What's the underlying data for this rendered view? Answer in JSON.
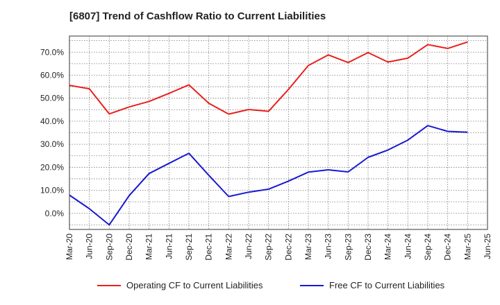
{
  "chart_data": {
    "type": "line",
    "title": "[6807]  Trend of Cashflow Ratio to Current Liabilities",
    "xlabel": "",
    "ylabel": "",
    "x": [
      "Mar-20",
      "Jun-20",
      "Sep-20",
      "Dec-20",
      "Mar-21",
      "Jun-21",
      "Sep-21",
      "Dec-21",
      "Mar-22",
      "Jun-22",
      "Sep-22",
      "Dec-22",
      "Mar-23",
      "Jun-23",
      "Sep-23",
      "Dec-23",
      "Mar-24",
      "Jun-24",
      "Sep-24",
      "Dec-24",
      "Mar-25",
      "Jun-25"
    ],
    "y_ticks": [
      "0.0%",
      "10.0%",
      "20.0%",
      "30.0%",
      "40.0%",
      "50.0%",
      "60.0%",
      "70.0%"
    ],
    "ylim": [
      -7,
      77
    ],
    "grid": true,
    "legend_position": "bottom",
    "series": [
      {
        "name": "Operating CF to Current Liabilities",
        "color": "#e8201c",
        "values": [
          55.6,
          54.1,
          43.2,
          46.2,
          48.6,
          52.1,
          55.8,
          47.8,
          43.1,
          45.1,
          44.3,
          53.8,
          64.2,
          68.8,
          65.5,
          69.8,
          65.7,
          67.4,
          73.3,
          71.6,
          74.4,
          null
        ]
      },
      {
        "name": "Free CF to Current Liabilities",
        "color": "#1818d0",
        "values": [
          7.9,
          2.0,
          -5.0,
          7.7,
          17.3,
          21.7,
          26.1,
          16.5,
          7.3,
          9.2,
          10.5,
          14.0,
          17.9,
          18.9,
          18.0,
          24.3,
          27.5,
          31.8,
          38.1,
          35.6,
          35.2,
          null
        ]
      }
    ]
  }
}
